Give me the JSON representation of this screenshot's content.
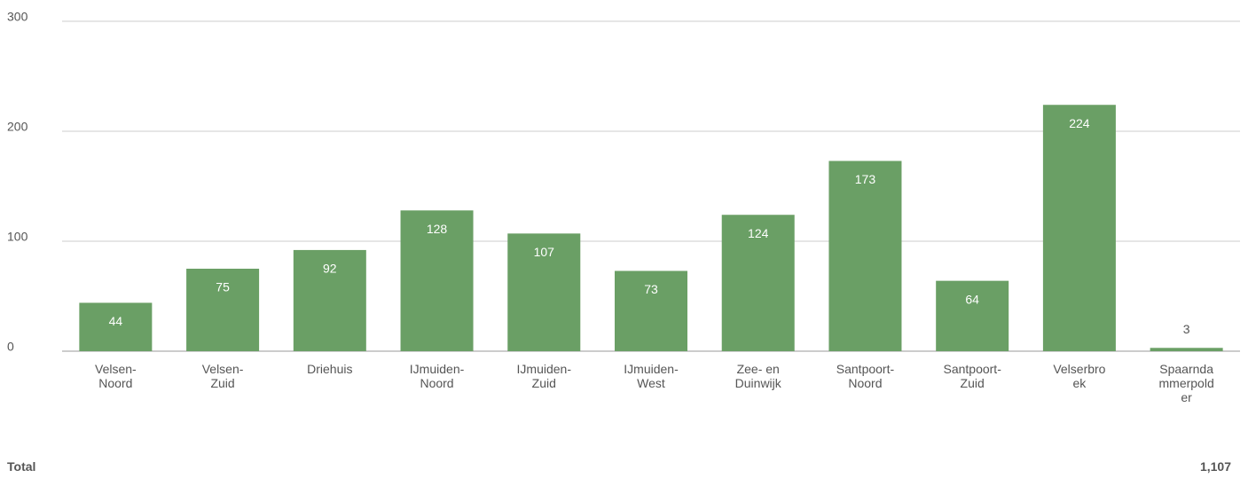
{
  "chart_data": {
    "type": "bar",
    "categories": [
      "Velsen-Noord",
      "Velsen-Zuid",
      "Driehuis",
      "IJmuiden-Noord",
      "IJmuiden-Zuid",
      "IJmuiden-West",
      "Zee- en Duinwijk",
      "Santpoort-Noord",
      "Santpoort-Zuid",
      "Velserbroek",
      "Spaarndammerpolder"
    ],
    "values": [
      44,
      75,
      92,
      128,
      107,
      73,
      124,
      173,
      64,
      224,
      3
    ],
    "color": "#6a9f65",
    "ylim": [
      0,
      300
    ],
    "yticks": [
      0,
      100,
      200,
      300
    ],
    "grid": true
  },
  "total": {
    "label": "Total",
    "value": "1,107"
  }
}
